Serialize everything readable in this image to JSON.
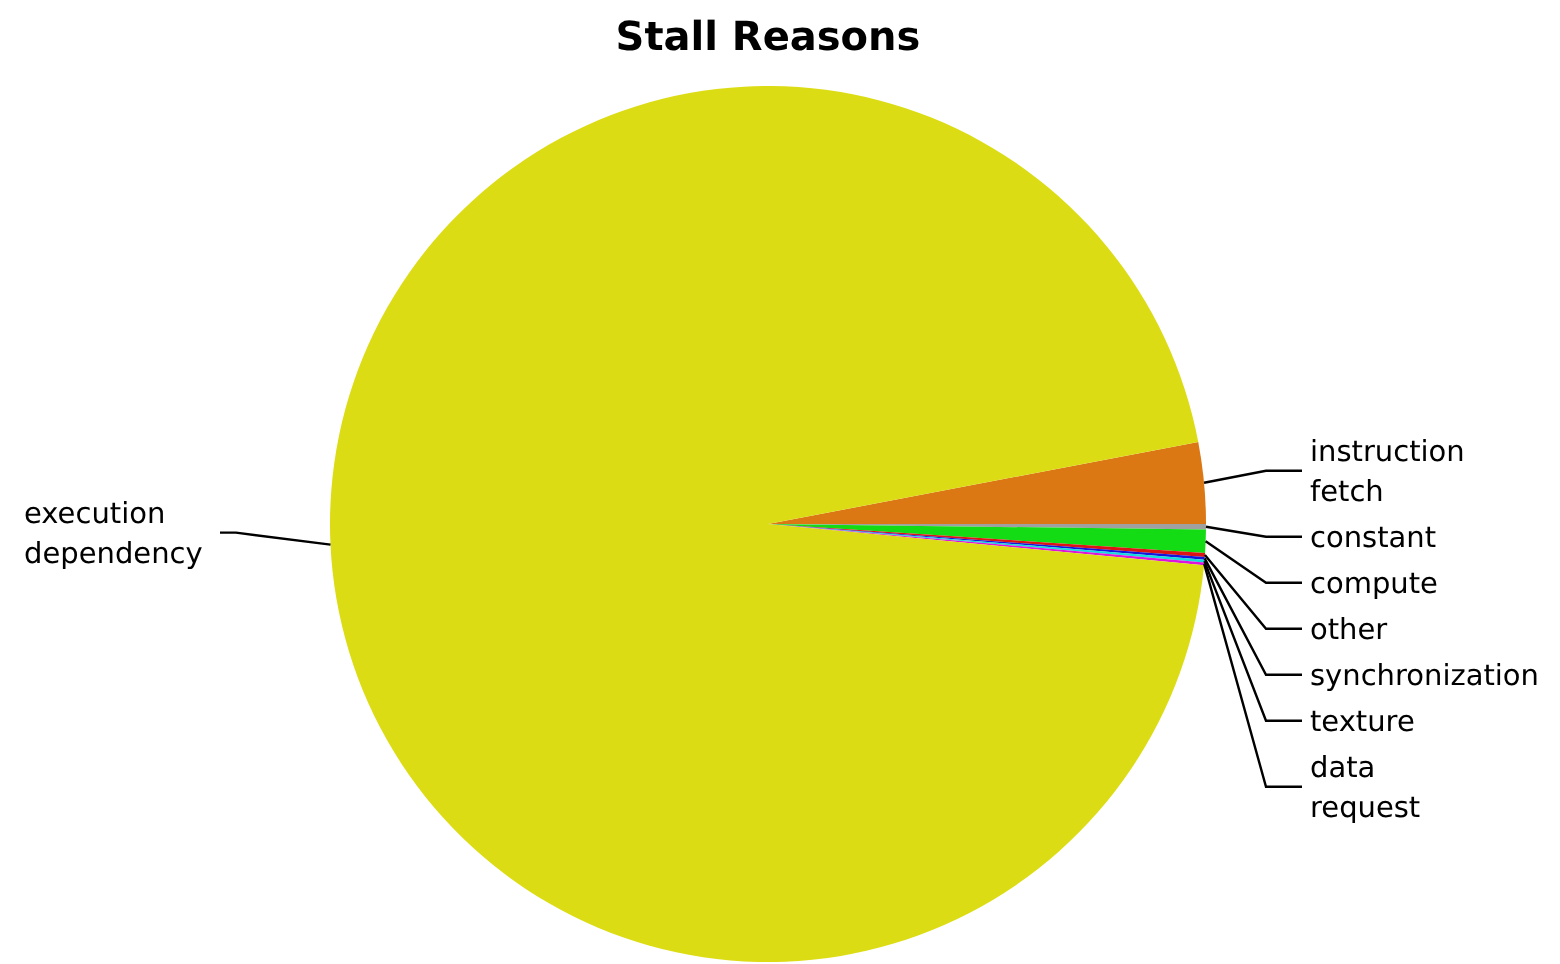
{
  "chart_data": {
    "type": "pie",
    "title": "Stall Reasons",
    "categories": [
      "instruction fetch",
      "constant",
      "compute",
      "other",
      "synchronization",
      "texture",
      "data request",
      "execution dependency"
    ],
    "values": [
      3.0,
      0.2,
      0.85,
      0.15,
      0.1,
      0.1,
      0.1,
      95.5
    ],
    "colors": [
      "#dc7814",
      "#a0a0a0",
      "#14dc14",
      "#dc1414",
      "#1414dc",
      "#14dcdc",
      "#dc14dc",
      "#dcdc14"
    ]
  }
}
